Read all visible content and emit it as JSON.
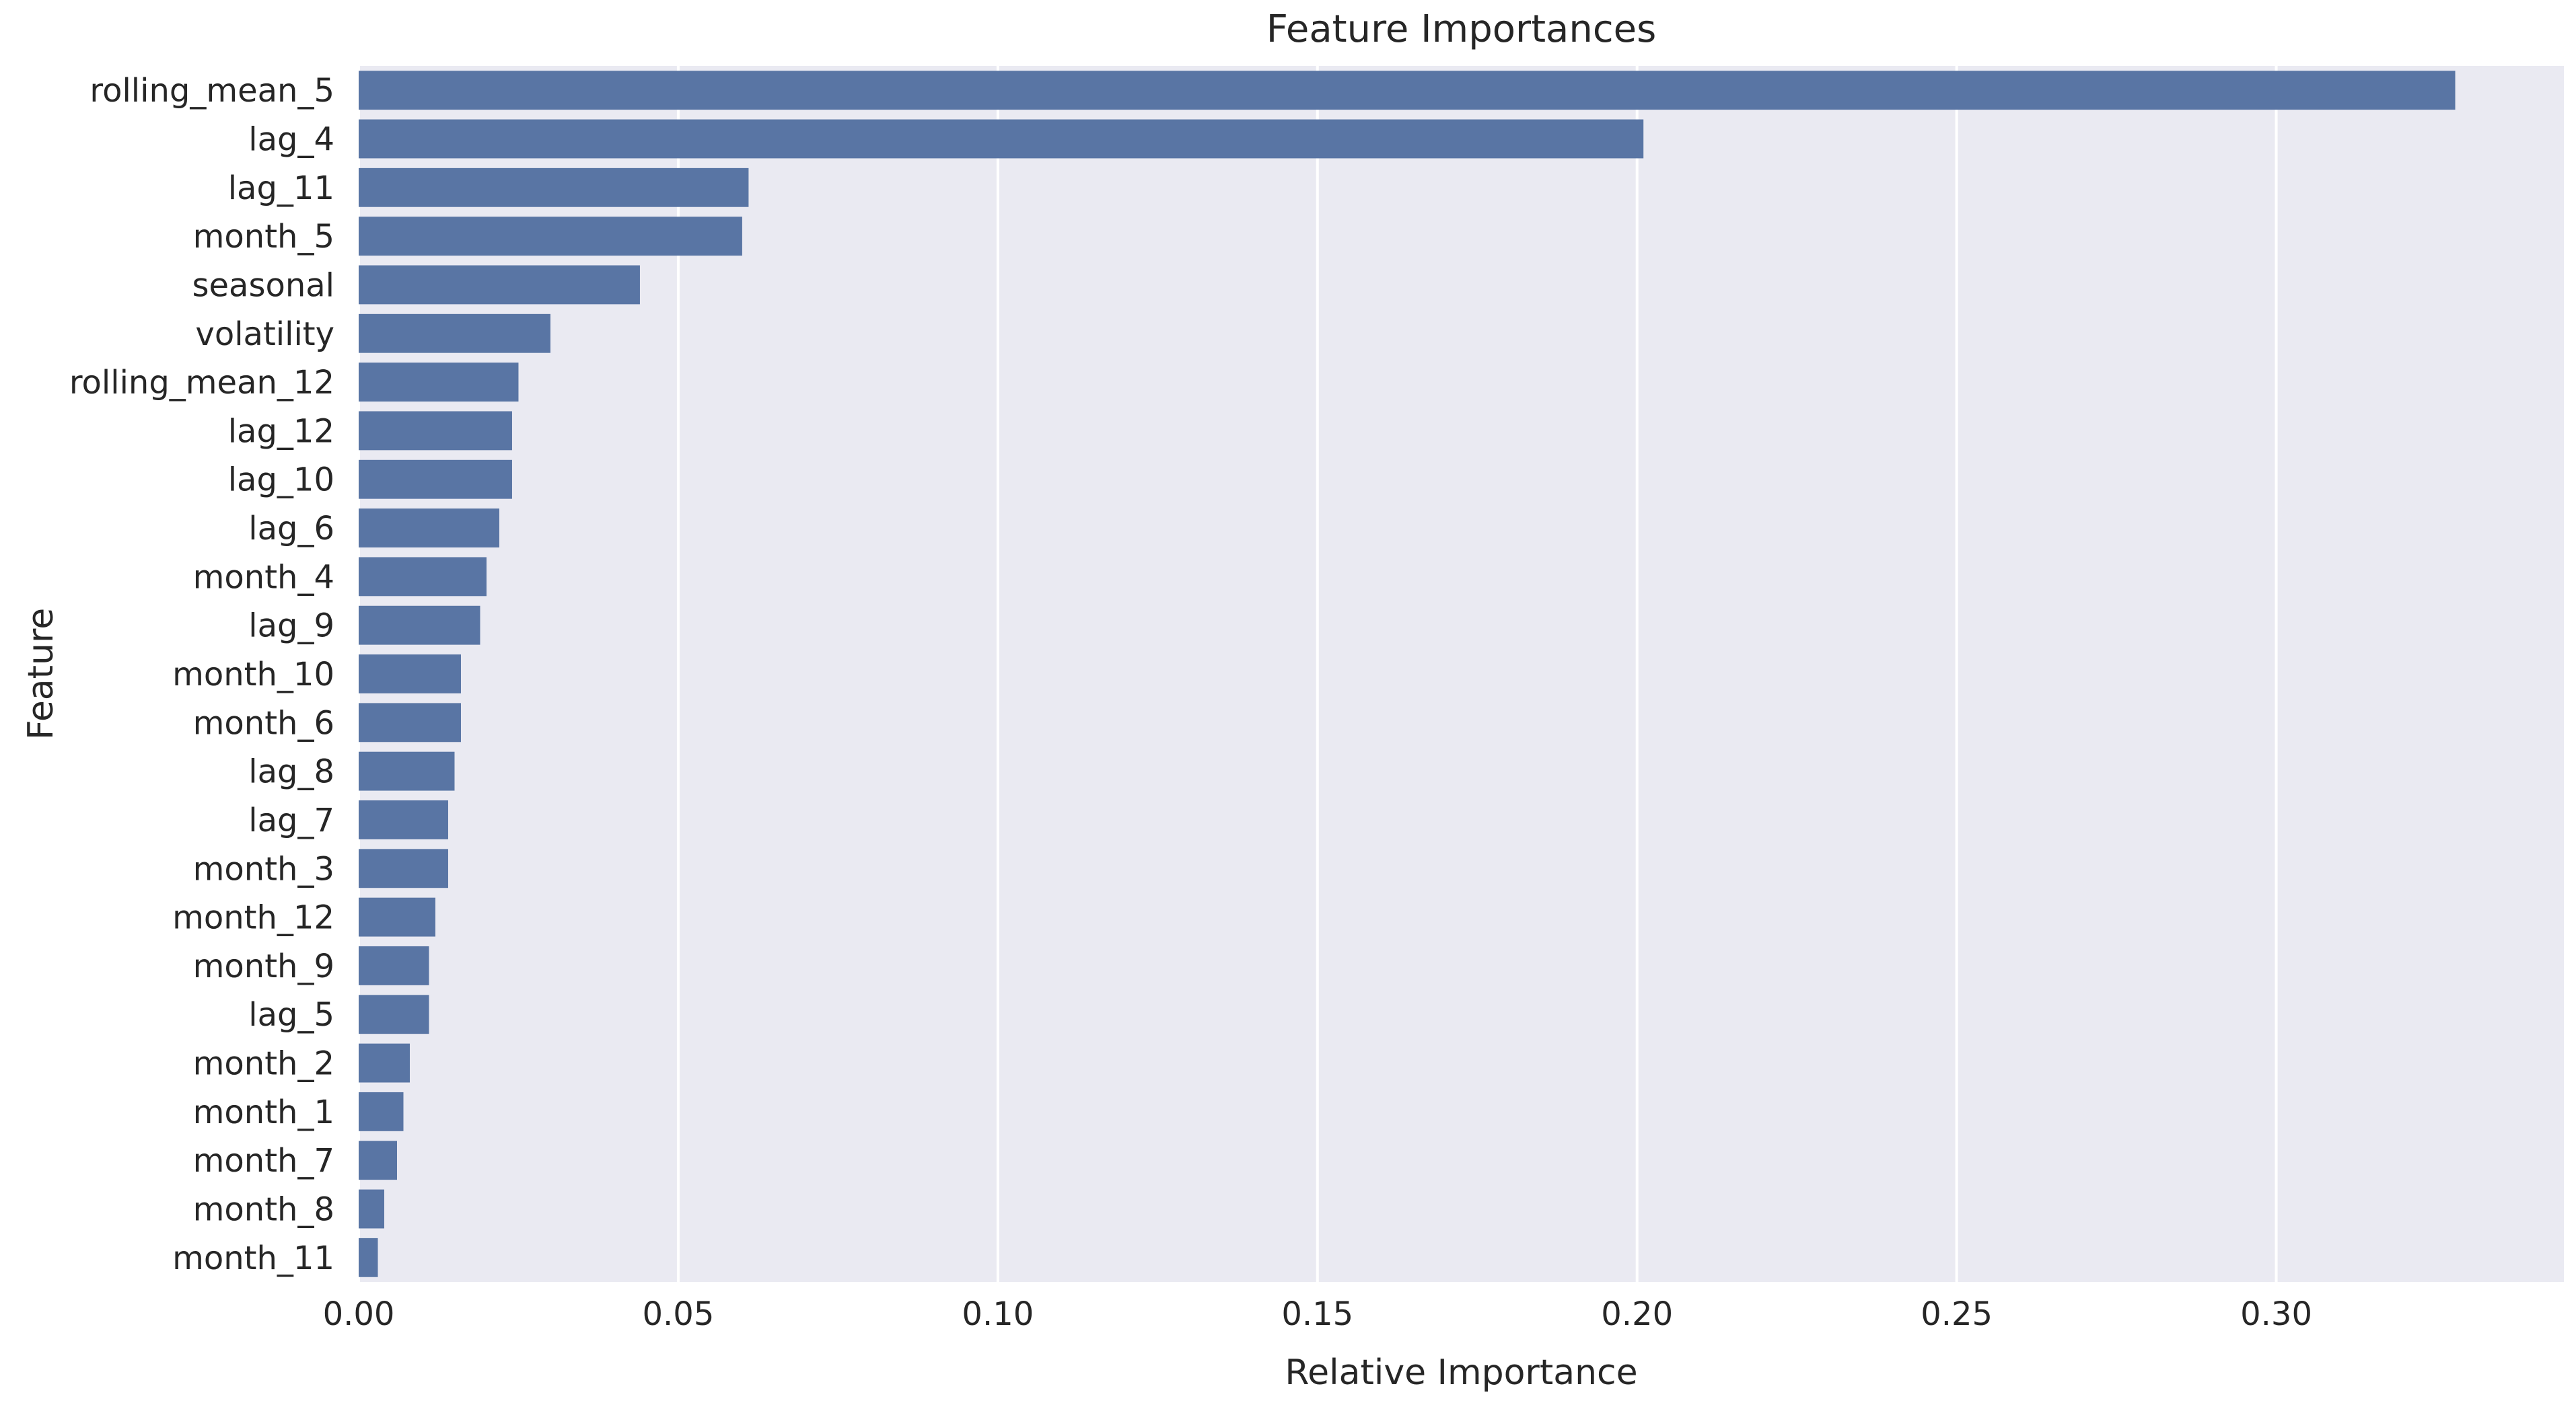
{
  "chart_data": {
    "type": "bar",
    "orientation": "horizontal",
    "title": "Feature Importances",
    "xlabel": "Relative Importance",
    "ylabel": "Feature",
    "xlim": [
      0,
      0.345
    ],
    "xticks": [
      0.0,
      0.05,
      0.1,
      0.15,
      0.2,
      0.25,
      0.3
    ],
    "xtick_labels": [
      "0.00",
      "0.05",
      "0.10",
      "0.15",
      "0.20",
      "0.25",
      "0.30"
    ],
    "grid": true,
    "categories": [
      "rolling_mean_5",
      "lag_4",
      "lag_11",
      "month_5",
      "seasonal",
      "volatility",
      "rolling_mean_12",
      "lag_12",
      "lag_10",
      "lag_6",
      "month_4",
      "lag_9",
      "month_10",
      "month_6",
      "lag_8",
      "lag_7",
      "month_3",
      "month_12",
      "month_9",
      "lag_5",
      "month_2",
      "month_1",
      "month_7",
      "month_8",
      "month_11"
    ],
    "values": [
      0.328,
      0.201,
      0.061,
      0.06,
      0.044,
      0.03,
      0.025,
      0.024,
      0.024,
      0.022,
      0.02,
      0.019,
      0.016,
      0.016,
      0.015,
      0.014,
      0.014,
      0.012,
      0.011,
      0.011,
      0.008,
      0.007,
      0.006,
      0.004,
      0.003
    ],
    "colors": {
      "bar": "#5975a4",
      "background": "#eaeaf2",
      "grid": "#ffffff",
      "text": "#262626"
    }
  }
}
